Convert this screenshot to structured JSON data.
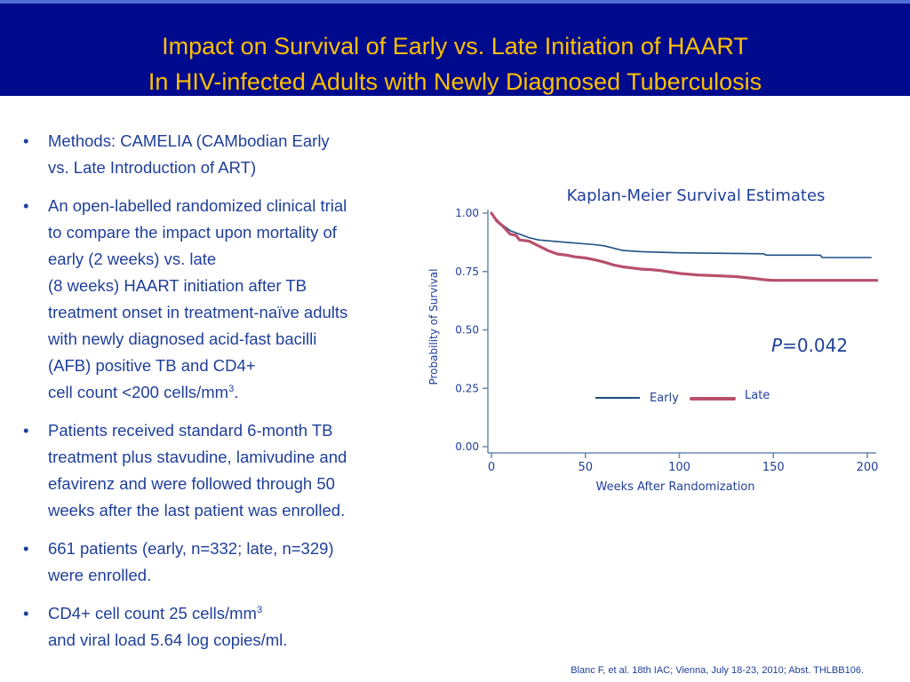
{
  "header": {
    "title_line1": "Impact on Survival of Early vs. Late Initiation of HAART",
    "title_line2": "In HIV-infected Adults with Newly Diagnosed Tuberculosis"
  },
  "bullets": [
    {
      "segments": [
        "Methods: CAMELIA (CAMbodian Early",
        "vs. Late Introduction of ART)"
      ]
    },
    {
      "segments": [
        "An open-labelled randomized clinical trial",
        "to compare the impact upon mortality of",
        "early (2 weeks) vs. late",
        "(8 weeks) HAART initiation after TB",
        "treatment onset in treatment-naïve adults",
        "with newly diagnosed acid-fast bacilli",
        "(AFB) positive TB and CD4+",
        "cell count <200 cells/mm"
      ],
      "sup": "3",
      "suffix": "."
    },
    {
      "segments": [
        "Patients received standard 6-month TB",
        "treatment plus stavudine, lamivudine and",
        "efavirenz and were followed through 50",
        "weeks after the last patient was enrolled."
      ]
    },
    {
      "segments": [
        "661 patients (early, n=332; late, n=329)",
        "were enrolled."
      ]
    },
    {
      "segments": [
        "CD4+ cell count 25 cells/mm"
      ],
      "sup": "3",
      "after_sup_segments": [
        "and viral load 5.64 log copies/ml."
      ]
    }
  ],
  "citation": "Blanc F, et al. 18th IAC; Vienna, July 18-23, 2010; Abst. THLBB106.",
  "colors": {
    "header_bg": "#000a8c",
    "title": "#ffc000",
    "text": "#1f3f9a",
    "early": "#1e4f82",
    "late": "#b8506b"
  },
  "chart_data": {
    "type": "line",
    "title": "Kaplan-Meier Survival Estimates",
    "xlabel": "Weeks After Randomization",
    "ylabel": "Probability of Survival",
    "xlim": [
      0,
      200
    ],
    "ylim": [
      0,
      1
    ],
    "xticks": [
      0,
      50,
      100,
      150,
      200
    ],
    "xtick_labels": [
      "0",
      "50",
      "100",
      "150",
      "200"
    ],
    "yticks": [
      0,
      0.25,
      0.5,
      0.75,
      1.0
    ],
    "ytick_labels": [
      "0.00",
      "0.25",
      "0.50",
      "0.75",
      "1.00"
    ],
    "annotation": {
      "p_label": "P",
      "p_value": "=0.042"
    },
    "legend_position": "center",
    "series": [
      {
        "name": "Early",
        "x": [
          0,
          2,
          5,
          10,
          15,
          20,
          25,
          40,
          55,
          60,
          70,
          80,
          100,
          120,
          145,
          146,
          175,
          176,
          202
        ],
        "y": [
          1.0,
          0.98,
          0.955,
          0.925,
          0.91,
          0.895,
          0.885,
          0.875,
          0.865,
          0.86,
          0.84,
          0.835,
          0.83,
          0.828,
          0.826,
          0.82,
          0.82,
          0.81,
          0.81
        ]
      },
      {
        "name": "Late",
        "x": [
          0,
          3,
          6,
          10,
          13,
          15,
          20,
          25,
          30,
          35,
          40,
          45,
          50,
          55,
          60,
          65,
          70,
          75,
          80,
          85,
          90,
          95,
          100,
          110,
          120,
          130,
          140,
          145,
          150,
          160,
          170,
          180,
          190,
          205
        ],
        "y": [
          1.0,
          0.965,
          0.945,
          0.91,
          0.905,
          0.885,
          0.88,
          0.86,
          0.84,
          0.825,
          0.82,
          0.812,
          0.808,
          0.8,
          0.79,
          0.778,
          0.77,
          0.765,
          0.76,
          0.758,
          0.754,
          0.748,
          0.742,
          0.735,
          0.732,
          0.728,
          0.72,
          0.715,
          0.712,
          0.712,
          0.712,
          0.712,
          0.712,
          0.712
        ]
      }
    ]
  }
}
